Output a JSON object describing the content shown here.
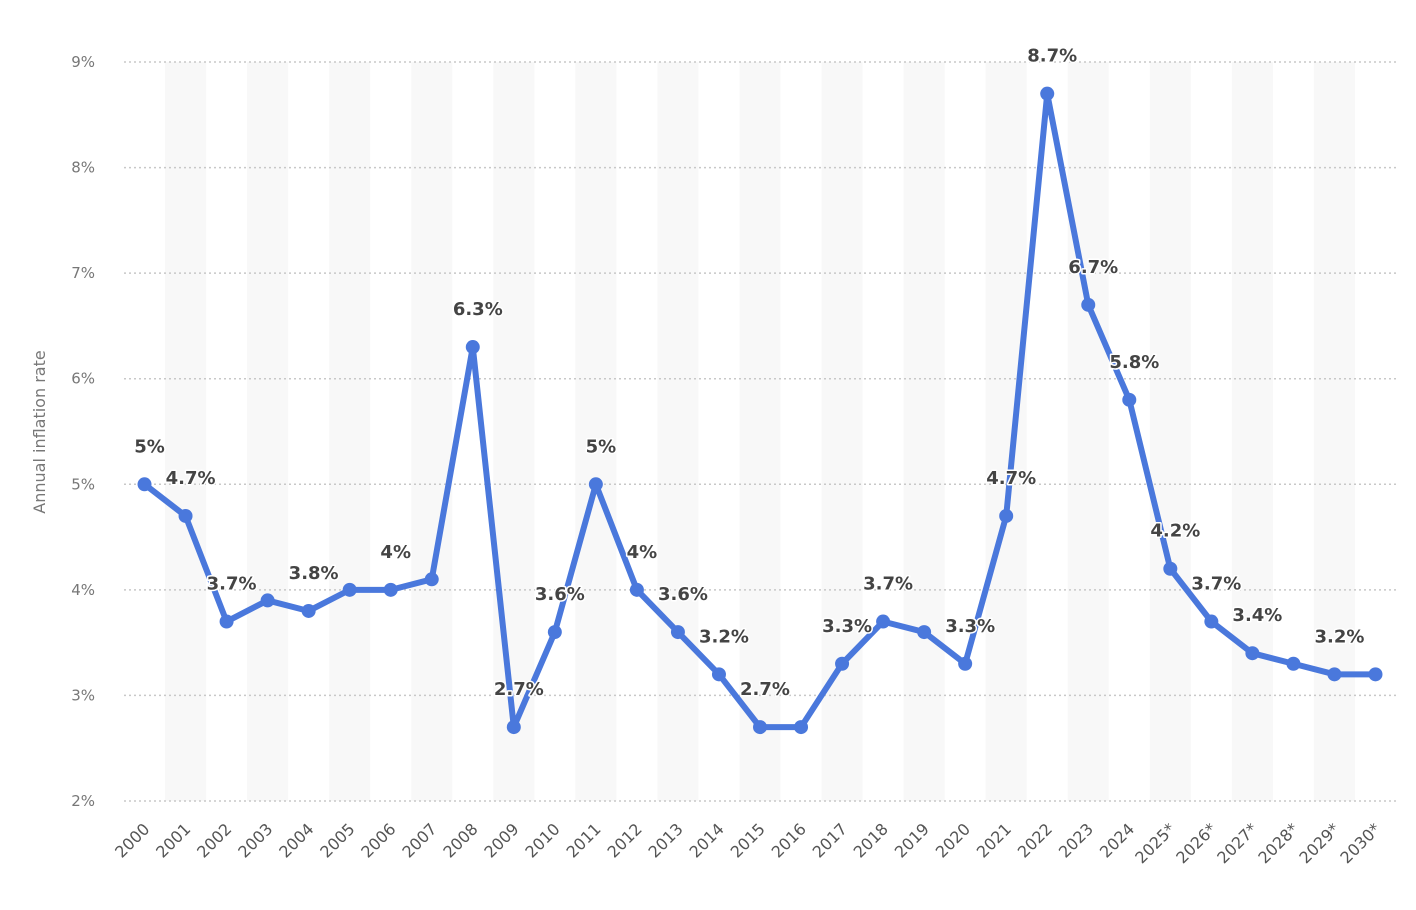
{
  "chart_data": {
    "type": "line",
    "title": "",
    "xlabel": "",
    "ylabel": "Annual inflation rate",
    "ylim": [
      2,
      9
    ],
    "yticks": [
      "2%",
      "3%",
      "4%",
      "5%",
      "6%",
      "7%",
      "8%",
      "9%"
    ],
    "grid": true,
    "line_color": "#4a78dc",
    "categories": [
      "2000",
      "2001",
      "2002",
      "2003",
      "2004",
      "2005",
      "2006",
      "2007",
      "2008",
      "2009",
      "2010",
      "2011",
      "2012",
      "2013",
      "2014",
      "2015",
      "2016",
      "2017",
      "2018",
      "2019",
      "2020",
      "2021",
      "2022",
      "2023",
      "2024",
      "2025*",
      "2026*",
      "2027*",
      "2028*",
      "2029*",
      "2030*"
    ],
    "series": [
      {
        "name": "Annual inflation rate",
        "values": [
          5.0,
          4.7,
          3.7,
          3.9,
          3.8,
          4.0,
          4.0,
          4.1,
          6.3,
          2.7,
          3.6,
          5.0,
          4.0,
          3.6,
          3.2,
          2.7,
          2.7,
          3.3,
          3.7,
          3.6,
          3.3,
          4.7,
          8.7,
          6.7,
          5.8,
          4.2,
          3.7,
          3.4,
          3.3,
          3.2,
          3.2
        ],
        "data_labels": [
          "5%",
          "4.7%",
          "3.7%",
          null,
          "3.8%",
          null,
          "4%",
          null,
          "6.3%",
          "2.7%",
          "3.6%",
          "5%",
          "4%",
          "3.6%",
          "3.2%",
          "2.7%",
          null,
          "3.3%",
          "3.7%",
          null,
          "3.3%",
          "4.7%",
          "8.7%",
          "6.7%",
          "5.8%",
          "4.2%",
          "3.7%",
          "3.4%",
          null,
          "3.2%",
          null
        ]
      }
    ]
  }
}
